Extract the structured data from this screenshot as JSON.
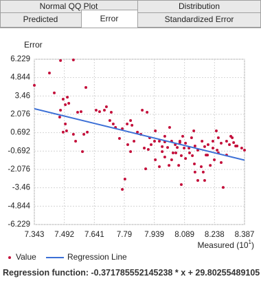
{
  "tabs": {
    "rows": [
      [
        "Normal QQ Plot",
        "Distribution"
      ],
      [
        "Predicted",
        "Error",
        "Standardized Error"
      ]
    ]
  },
  "chart_data": {
    "type": "scatter",
    "y_label": "Error",
    "x_label": "Measured (10",
    "x_label_exponent": "1",
    "x_label_suffix": ")",
    "xlim": [
      7.343,
      8.387
    ],
    "xticks": [
      7.343,
      7.492,
      7.641,
      7.79,
      7.939,
      8.089,
      8.238,
      8.387
    ],
    "ylim": [
      -6.229,
      6.229
    ],
    "yticks": [
      6.229,
      4.844,
      3.46,
      2.076,
      0.692,
      -0.692,
      -2.076,
      -3.46,
      -4.844,
      -6.229
    ],
    "grid": true,
    "series": [
      {
        "name": "Value",
        "color": "#c4113c",
        "x": [
          7.343,
          7.418,
          7.442,
          7.473,
          7.537,
          7.486,
          7.507,
          7.497,
          7.514,
          7.473,
          7.469,
          7.497,
          7.486,
          7.503,
          7.537,
          7.548,
          7.589,
          7.606,
          7.582,
          7.599,
          7.558,
          7.575,
          7.65,
          7.667,
          7.691,
          7.701,
          7.725,
          7.735,
          7.718,
          7.746,
          7.78,
          7.766,
          7.804,
          7.821,
          7.828,
          7.855,
          7.879,
          7.903,
          7.872,
          7.889,
          7.916,
          7.94,
          7.964,
          7.978,
          7.991,
          7.78,
          7.793,
          7.821,
          7.807,
          7.838,
          8.015,
          8.025,
          8.043,
          8.053,
          8.066,
          8.08,
          8.094,
          8.111,
          8.124,
          8.135,
          8.141,
          8.155,
          8.176,
          8.189,
          8.196,
          8.206,
          8.23,
          8.251,
          8.271,
          8.298,
          8.319,
          8.333,
          8.35,
          8.373,
          8.387,
          7.944,
          7.964,
          7.991,
          8.012,
          8.025,
          8.046,
          8.06,
          8.073,
          8.094,
          8.114,
          8.138,
          8.155,
          8.172,
          8.189,
          8.217,
          8.237,
          8.257,
          8.271,
          8.281,
          8.298,
          8.312,
          8.326,
          8.343,
          8.128,
          8.073,
          8.032,
          8.005,
          7.978,
          7.944,
          7.923,
          7.909,
          7.896,
          8.141,
          8.182,
          8.203,
          8.23,
          8.247,
          8.257,
          8.066,
          8.087,
          7.991
        ],
        "values": [
          4.26,
          5.19,
          3.69,
          6.13,
          6.18,
          3.22,
          3.37,
          2.8,
          2.91,
          2.39,
          1.87,
          1.35,
          0.73,
          0.83,
          0.57,
          0.05,
          0.57,
          0.73,
          -0.73,
          4.1,
          2.23,
          2.28,
          2.39,
          2.28,
          2.39,
          2.65,
          2.23,
          1.35,
          1.61,
          1.09,
          0.99,
          0.26,
          1.35,
          1.61,
          1.25,
          0.73,
          2.39,
          2.23,
          0.57,
          -0.47,
          0.31,
          0.05,
          0.05,
          -0.36,
          0.42,
          -3.58,
          -2.8,
          -0.73,
          -0.21,
          0.05,
          1.09,
          0.05,
          -0.21,
          -0.42,
          -0.05,
          0.42,
          -0.1,
          -0.47,
          0.31,
          0.83,
          -0.31,
          -0.62,
          0.05,
          -0.36,
          -0.99,
          -0.21,
          -0.47,
          -0.62,
          -0.1,
          0.05,
          0.42,
          -0.05,
          -0.31,
          -0.47,
          -0.62,
          -1.35,
          -1.87,
          -1.14,
          -1.77,
          -1.35,
          -0.83,
          -1.77,
          -3.22,
          -1.25,
          -0.83,
          -1.66,
          -2.91,
          -1.87,
          -2.91,
          -1.77,
          -1.35,
          -0.83,
          -1.56,
          -3.43,
          -0.99,
          -0.21,
          0.31,
          -0.31,
          -1.04,
          -1.04,
          -0.83,
          -0.42,
          -0.73,
          0.83,
          -0.21,
          -0.57,
          -2.03,
          -2.28,
          -2.28,
          -0.99,
          0.05,
          0.83,
          0.31,
          0.05,
          -0.47,
          0
        ]
      },
      {
        "name": "Regression Line",
        "color": "#3b6fd6"
      }
    ],
    "regression_function": {
      "label": "Regression function:",
      "slope": -0.371785552145238,
      "operator": "* x +",
      "intercept": 29.80255489105
    }
  }
}
